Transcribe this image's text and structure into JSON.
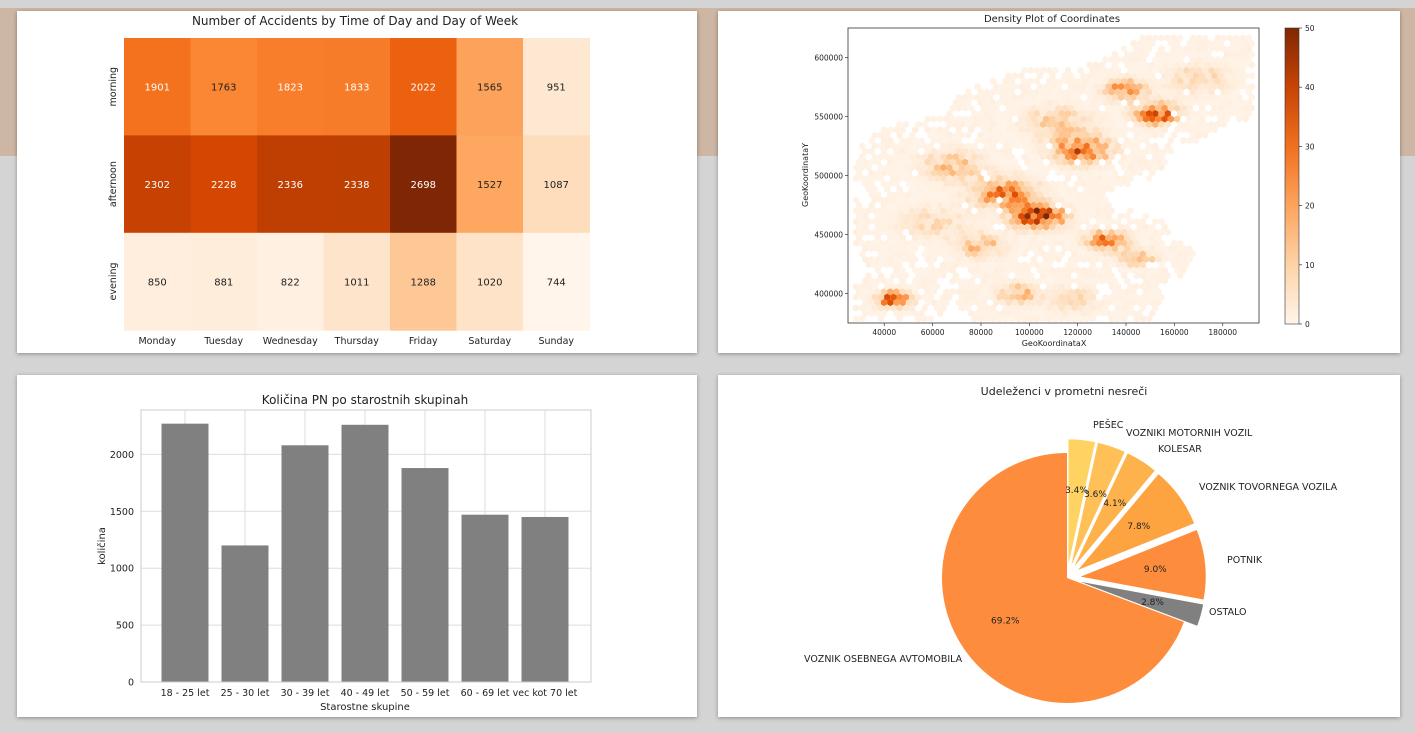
{
  "chart_data": [
    {
      "type": "heatmap",
      "title": "Number of Accidents by Time of Day and Day of Week",
      "x_categories": [
        "Monday",
        "Tuesday",
        "Wednesday",
        "Thursday",
        "Friday",
        "Saturday",
        "Sunday"
      ],
      "y_categories": [
        "morning",
        "afternoon",
        "evening"
      ],
      "values": [
        [
          1901,
          1763,
          1823,
          1833,
          2022,
          1565,
          951
        ],
        [
          2302,
          2228,
          2336,
          2338,
          2698,
          1527,
          1087
        ],
        [
          850,
          881,
          822,
          1011,
          1288,
          1020,
          744
        ]
      ],
      "colormap": "Oranges"
    },
    {
      "type": "hexbin",
      "title": "Density Plot of Coordinates",
      "xlabel": "GeoKoordinataX",
      "ylabel": "GeoKoordinataY",
      "xlim": [
        25000,
        195000
      ],
      "ylim": [
        375000,
        625000
      ],
      "xticks": [
        40000,
        60000,
        80000,
        100000,
        120000,
        140000,
        160000,
        180000
      ],
      "yticks": [
        400000,
        450000,
        500000,
        550000,
        600000
      ],
      "colorbar_range": [
        0,
        50
      ],
      "colorbar_ticks": [
        0,
        10,
        20,
        30,
        40,
        50
      ],
      "density_clusters": [
        {
          "x": 104000,
          "y": 465000,
          "weight": 50,
          "spread": 7000
        },
        {
          "x": 90000,
          "y": 485000,
          "weight": 30,
          "spread": 9000
        },
        {
          "x": 122000,
          "y": 522000,
          "weight": 35,
          "spread": 8000
        },
        {
          "x": 153000,
          "y": 552000,
          "weight": 40,
          "spread": 6000
        },
        {
          "x": 140000,
          "y": 572000,
          "weight": 30,
          "spread": 6000
        },
        {
          "x": 132000,
          "y": 445000,
          "weight": 28,
          "spread": 6000
        },
        {
          "x": 145000,
          "y": 430000,
          "weight": 20,
          "spread": 5000
        },
        {
          "x": 44000,
          "y": 395000,
          "weight": 35,
          "spread": 5000
        },
        {
          "x": 80000,
          "y": 440000,
          "weight": 18,
          "spread": 7000
        },
        {
          "x": 95000,
          "y": 400000,
          "weight": 18,
          "spread": 6000
        },
        {
          "x": 68000,
          "y": 508000,
          "weight": 16,
          "spread": 9000
        },
        {
          "x": 112000,
          "y": 545000,
          "weight": 14,
          "spread": 10000
        },
        {
          "x": 170000,
          "y": 582000,
          "weight": 12,
          "spread": 9000
        },
        {
          "x": 60000,
          "y": 460000,
          "weight": 10,
          "spread": 10000
        },
        {
          "x": 118000,
          "y": 395000,
          "weight": 10,
          "spread": 8000
        }
      ]
    },
    {
      "type": "bar",
      "title": "Količina PN po starostnih skupinah",
      "xlabel": "Starostne skupine",
      "ylabel": "količina",
      "categories": [
        "18 - 25 let",
        "25 - 30 let",
        "30 - 39 let",
        "40 - 49 let",
        "50 - 59 let",
        "60 - 69 let",
        "vec kot 70 let"
      ],
      "values": [
        2270,
        1200,
        2080,
        2260,
        1880,
        1470,
        1450
      ],
      "ylim": [
        0,
        2390
      ],
      "yticks": [
        0,
        500,
        1000,
        1500,
        2000
      ],
      "bar_color": "#808080",
      "grid": true
    },
    {
      "type": "pie",
      "title": "Udeleženci v prometni nesreči",
      "slices": [
        {
          "label": "VOZNIK OSEBNEGA AVTOMOBILA",
          "value": 69.2,
          "pct": "69.2%",
          "color": "#fd8d3c"
        },
        {
          "label": "OSTALO",
          "value": 2.8,
          "pct": "2.8%",
          "color": "#808080"
        },
        {
          "label": "POTNIK",
          "value": 9.0,
          "pct": "9.0%",
          "color": "#fd8d3c"
        },
        {
          "label": "VOZNIK TOVORNEGA VOZILA",
          "value": 7.8,
          "pct": "7.8%",
          "color": "#fda441"
        },
        {
          "label": "KOLESAR",
          "value": 4.1,
          "pct": "4.1%",
          "color": "#feb24c"
        },
        {
          "label": "VOZNIKI MOTORNIH VOZIL",
          "value": 3.6,
          "pct": "3.6%",
          "color": "#fec057"
        },
        {
          "label": "PEŠEC",
          "value": 3.4,
          "pct": "3.4%",
          "color": "#fed362"
        }
      ]
    }
  ]
}
